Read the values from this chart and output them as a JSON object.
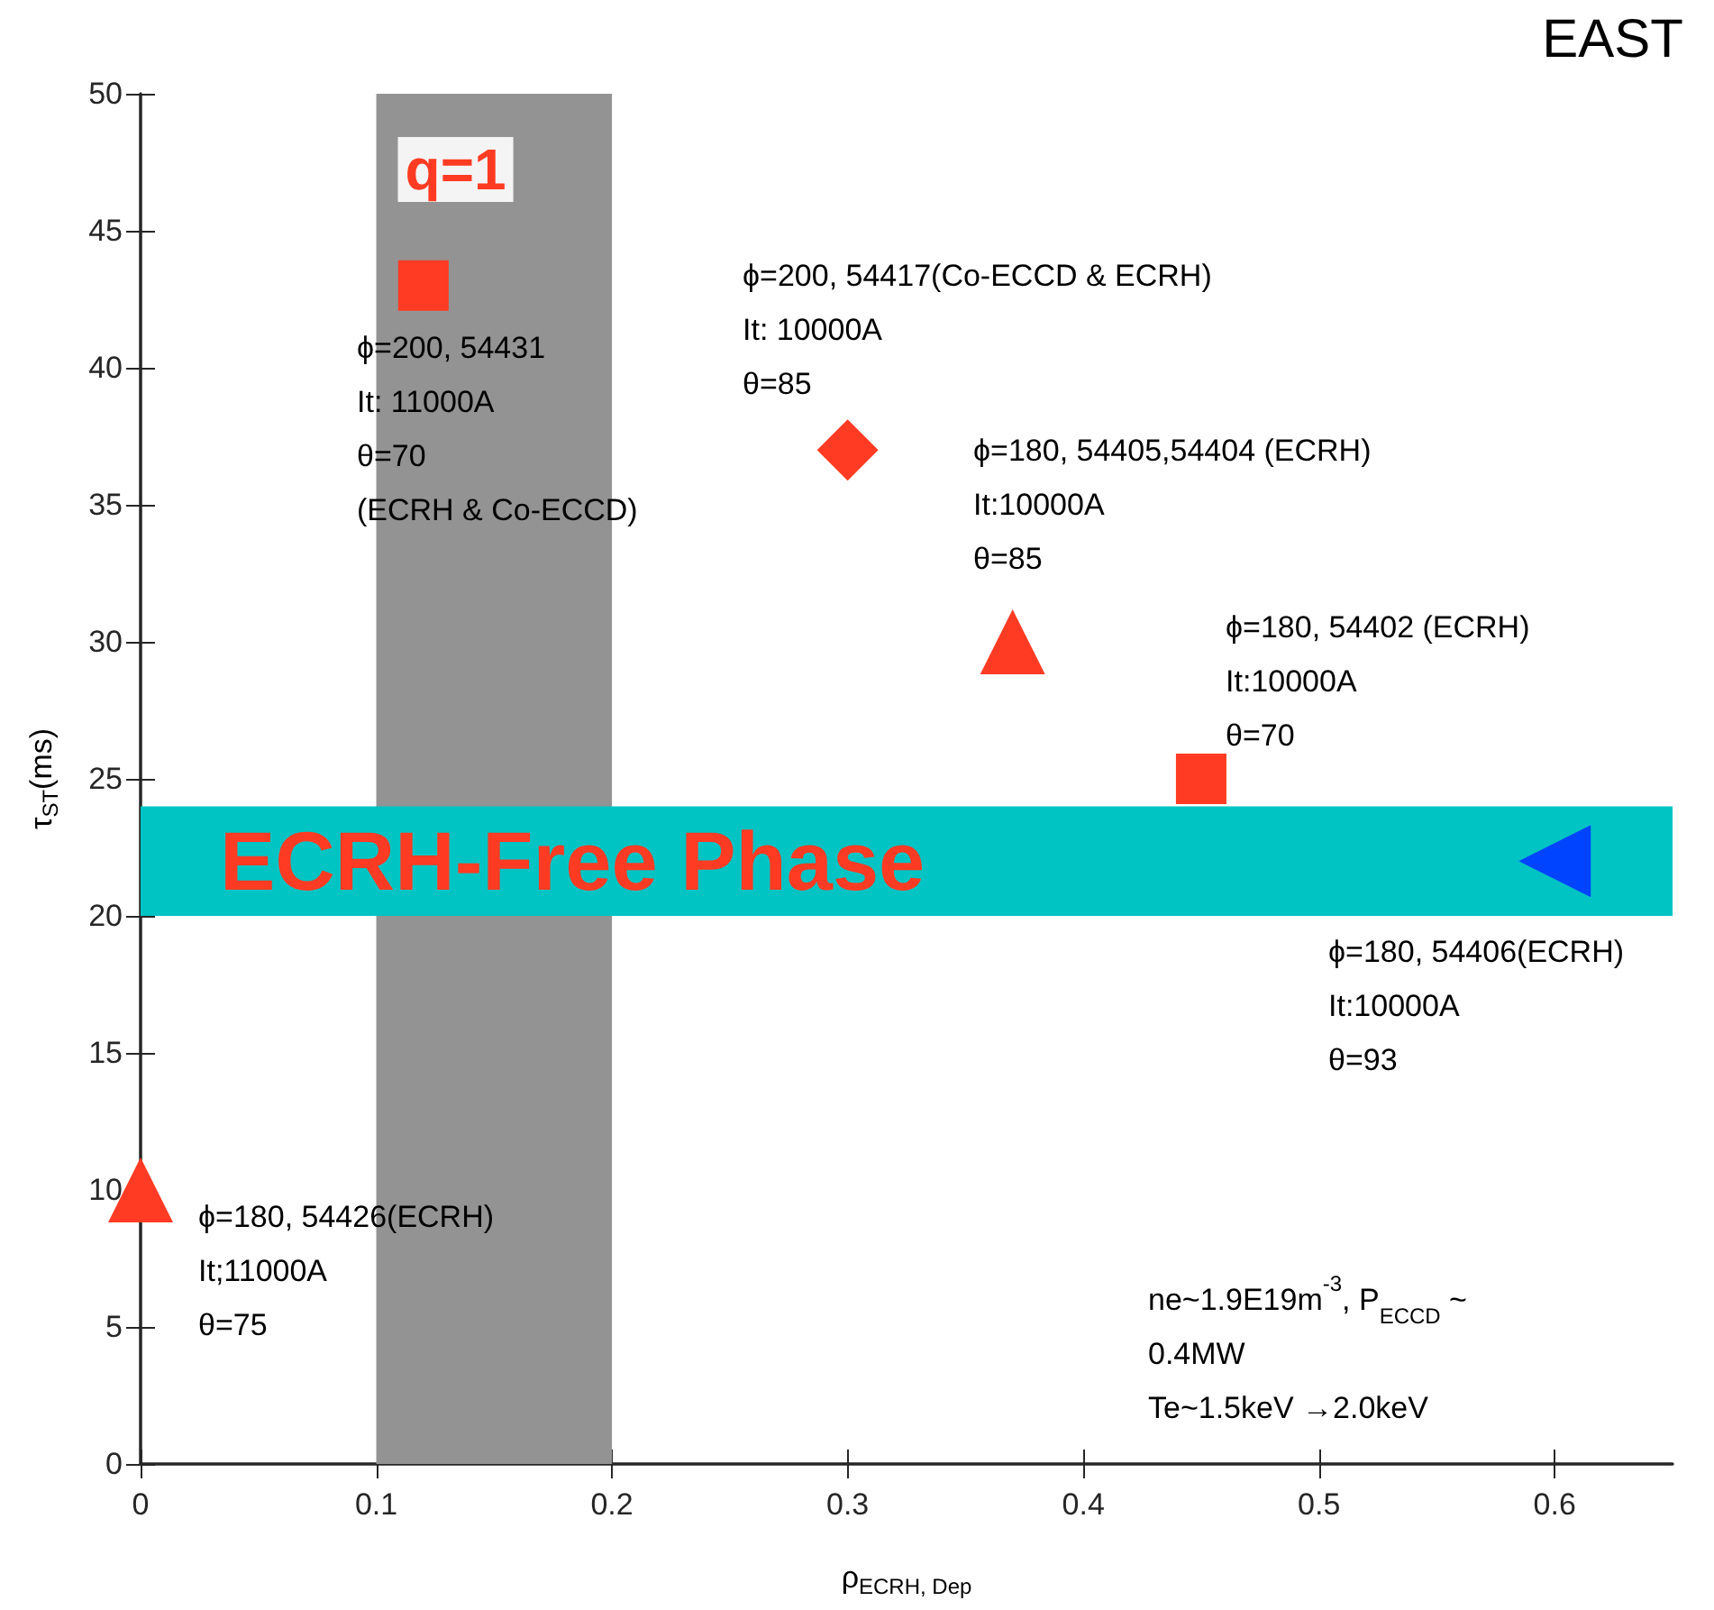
{
  "chart_data": {
    "type": "scatter",
    "title": "EAST",
    "xlabel": "ρ$_{ECRH, Dep}$",
    "ylabel": "τ$_{ST}$(ms)",
    "xlim": [
      0,
      0.65
    ],
    "xticks": [
      0,
      0.1,
      0.2,
      0.3,
      0.4,
      0.5,
      0.6
    ],
    "ylim": [
      0,
      50
    ],
    "yticks": [
      0,
      5,
      10,
      15,
      20,
      25,
      30,
      35,
      40,
      45,
      50
    ],
    "grid": false,
    "series": [
      {
        "marker": "square",
        "color": "#ff3b24",
        "x": [
          0.12
        ],
        "values": [
          43
        ]
      },
      {
        "marker": "diamond",
        "color": "#ff3b24",
        "x": [
          0.3
        ],
        "values": [
          37
        ]
      },
      {
        "marker": "triangle",
        "color": "#ff3b24",
        "x": [
          0.37
        ],
        "values": [
          30
        ]
      },
      {
        "marker": "square",
        "color": "#ff3b24",
        "x": [
          0.45
        ],
        "values": [
          25
        ]
      },
      {
        "marker": "triangle-left",
        "color": "#0044ff",
        "x": [
          0.6
        ],
        "values": [
          22
        ]
      },
      {
        "marker": "triangle",
        "color": "#ff3b24",
        "x": [
          0
        ],
        "values": [
          10
        ]
      }
    ],
    "bands": [
      {
        "axis": "x",
        "from": 0.1,
        "to": 0.2,
        "label": "q=1",
        "color": "#939393"
      },
      {
        "axis": "y",
        "from": 20,
        "to": 24,
        "label": "ECRH-Free Phase",
        "color": "#00c4c4"
      }
    ],
    "annotations": [
      "ϕ=200, 54431\nIt: 11000A\nθ=70\n(ECRH & Co-ECCD)",
      "ϕ=200, 54417(Co-ECCD & ECRH)\nIt: 10000A\nθ=85",
      "ϕ=180, 54405,54404 (ECRH)\nIt:10000A\nθ=85",
      "ϕ=180, 54402 (ECRH)\nIt:10000A\nθ=70",
      "ϕ=180, 54406(ECRH)\nIt:10000A\nθ=93",
      "ϕ=180, 54426(ECRH)\nIt;11000A\nθ=75",
      "ne~1.9E19m$^{-3}$, P$_{ECCD}$ ~\n0.4MW\nTe~1.5keV →2.0keV"
    ]
  }
}
